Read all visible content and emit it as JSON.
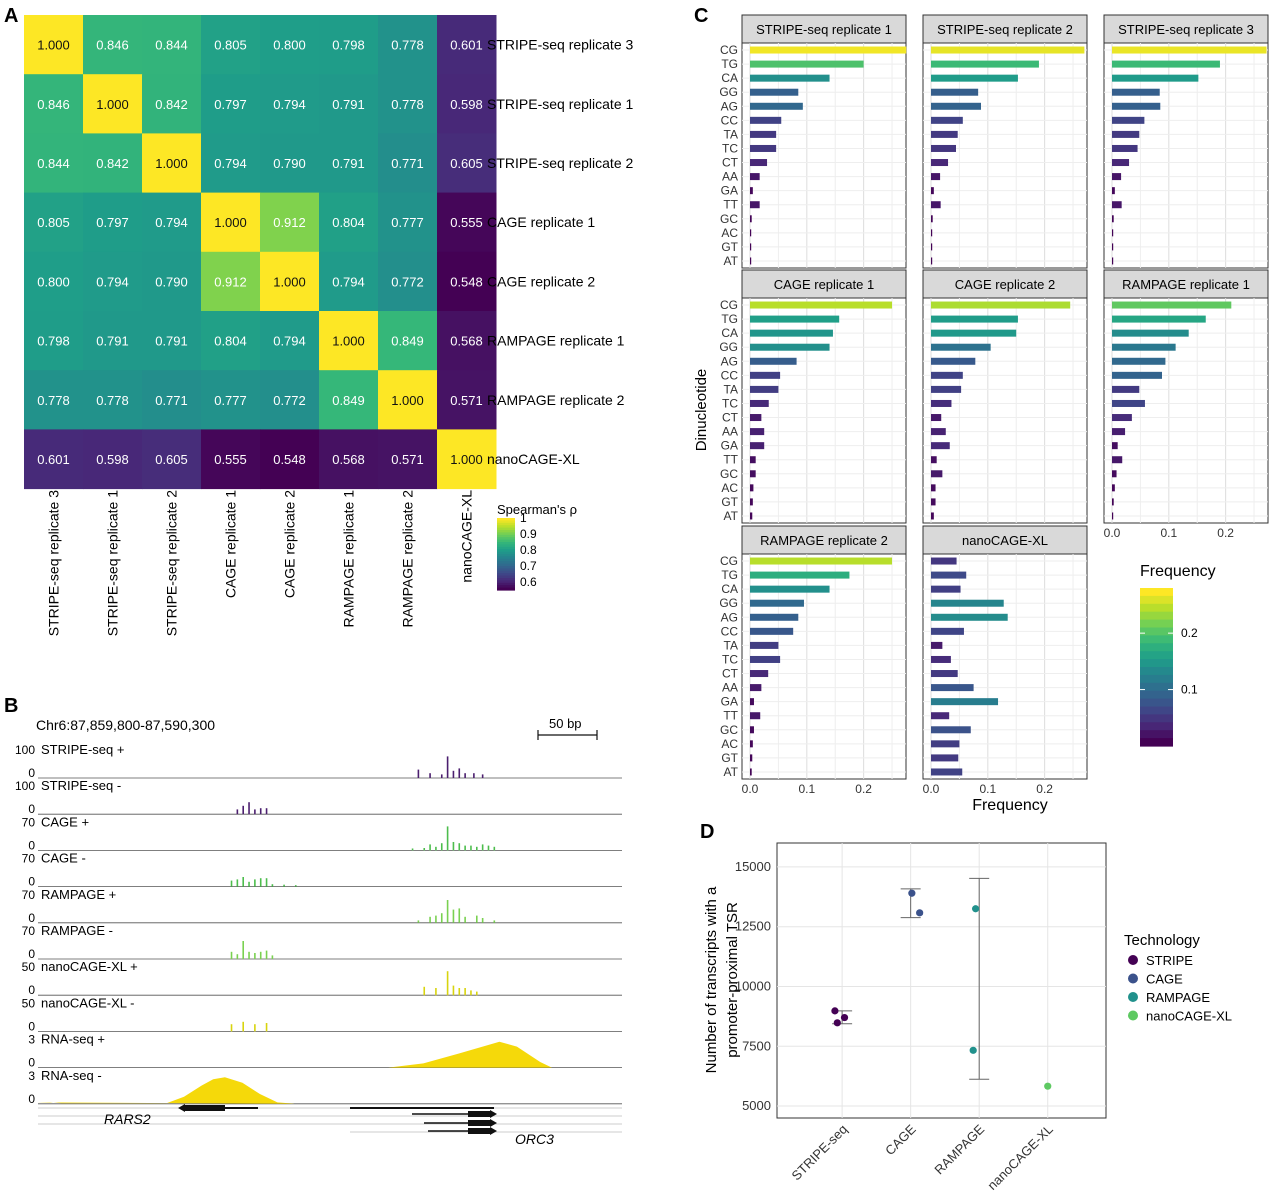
{
  "panel_labels": {
    "a": "A",
    "b": "B",
    "c": "C",
    "d": "D"
  },
  "colors": {
    "viridis": [
      "#440154",
      "#482878",
      "#3e4a89",
      "#31688e",
      "#26828e",
      "#1f9e89",
      "#35b779",
      "#6ece58",
      "#b5de2b",
      "#fde725"
    ],
    "technology": {
      "STRIPE": "#440154",
      "CAGE": "#3b528b",
      "RAMPAGE": "#21918c",
      "nanoCAGE-XL": "#5ec962"
    },
    "tracks": {
      "STRIPE": "#4b1f6f",
      "CAGE": "#4dbd4d",
      "RAMPAGE": "#7ad151",
      "nanoCAGE-XL": "#d8d40e",
      "RNA": "#f5d90a"
    }
  },
  "chart_data": [
    {
      "type": "heatmap",
      "panel": "A",
      "row_labels": [
        "STRIPE-seq replicate 3",
        "STRIPE-seq replicate 1",
        "STRIPE-seq replicate 2",
        "CAGE replicate 1",
        "CAGE replicate 2",
        "RAMPAGE replicate 1",
        "RAMPAGE replicate 2",
        "nanoCAGE-XL"
      ],
      "col_labels": [
        "STRIPE-seq replicate 3",
        "STRIPE-seq replicate 1",
        "STRIPE-seq replicate 2",
        "CAGE replicate 1",
        "CAGE replicate 2",
        "RAMPAGE replicate 1",
        "RAMPAGE replicate 2",
        "nanoCAGE-XL"
      ],
      "values": [
        [
          "1.000",
          "0.846",
          "0.844",
          "0.805",
          "0.800",
          "0.798",
          "0.778",
          "0.601"
        ],
        [
          "0.846",
          "1.000",
          "0.842",
          "0.797",
          "0.794",
          "0.791",
          "0.778",
          "0.598"
        ],
        [
          "0.844",
          "0.842",
          "1.000",
          "0.794",
          "0.790",
          "0.791",
          "0.771",
          "0.605"
        ],
        [
          "0.805",
          "0.797",
          "0.794",
          "1.000",
          "0.912",
          "0.804",
          "0.777",
          "0.555"
        ],
        [
          "0.800",
          "0.794",
          "0.790",
          "0.912",
          "1.000",
          "0.794",
          "0.772",
          "0.548"
        ],
        [
          "0.798",
          "0.791",
          "0.791",
          "0.804",
          "0.794",
          "1.000",
          "0.849",
          "0.568"
        ],
        [
          "0.778",
          "0.778",
          "0.771",
          "0.777",
          "0.772",
          "0.849",
          "1.000",
          "0.571"
        ],
        [
          "0.601",
          "0.598",
          "0.605",
          "0.555",
          "0.548",
          "0.568",
          "0.571",
          "1.000"
        ]
      ],
      "legend_title": "Spearman's ρ",
      "legend_ticks": [
        "1",
        "0.9",
        "0.8",
        "0.7",
        "0.6"
      ],
      "color_range": [
        0.548,
        1.0
      ]
    },
    {
      "type": "bar",
      "panel": "C",
      "orientation": "horizontal",
      "categories": [
        "CG",
        "TG",
        "CA",
        "GG",
        "AG",
        "CC",
        "TA",
        "TC",
        "CT",
        "AA",
        "GA",
        "TT",
        "GC",
        "AC",
        "GT",
        "AT"
      ],
      "xlabel": "Frequency",
      "ylabel": "Dinucleotide",
      "x_ticks": [
        "0.0",
        "0.1",
        "0.2"
      ],
      "xlim": [
        0,
        0.28
      ],
      "legend_title": "Frequency",
      "legend_ticks": [
        "0.2",
        "0.1"
      ],
      "series": [
        {
          "name": "STRIPE-seq replicate 1",
          "values": [
            0.275,
            0.2,
            0.14,
            0.085,
            0.093,
            0.055,
            0.046,
            0.046,
            0.03,
            0.017,
            0.005,
            0.017,
            0.003,
            0.002,
            0.002,
            0.002
          ]
        },
        {
          "name": "STRIPE-seq replicate 2",
          "values": [
            0.27,
            0.19,
            0.153,
            0.083,
            0.088,
            0.056,
            0.047,
            0.044,
            0.03,
            0.016,
            0.005,
            0.017,
            0.003,
            0.002,
            0.002,
            0.002
          ]
        },
        {
          "name": "STRIPE-seq replicate 3",
          "values": [
            0.272,
            0.19,
            0.152,
            0.084,
            0.085,
            0.057,
            0.048,
            0.045,
            0.03,
            0.016,
            0.005,
            0.017,
            0.003,
            0.002,
            0.002,
            0.002
          ]
        },
        {
          "name": "CAGE replicate 1",
          "values": [
            0.25,
            0.157,
            0.146,
            0.14,
            0.082,
            0.053,
            0.05,
            0.033,
            0.02,
            0.025,
            0.025,
            0.01,
            0.01,
            0.006,
            0.005,
            0.004
          ]
        },
        {
          "name": "CAGE replicate 2",
          "values": [
            0.245,
            0.153,
            0.15,
            0.105,
            0.078,
            0.056,
            0.053,
            0.036,
            0.018,
            0.026,
            0.033,
            0.01,
            0.02,
            0.008,
            0.008,
            0.005
          ]
        },
        {
          "name": "RAMPAGE replicate 1",
          "values": [
            0.21,
            0.165,
            0.135,
            0.112,
            0.094,
            0.088,
            0.048,
            0.058,
            0.035,
            0.023,
            0.01,
            0.018,
            0.008,
            0.005,
            0.003,
            0.002
          ]
        },
        {
          "name": "RAMPAGE replicate 2",
          "values": [
            0.25,
            0.175,
            0.14,
            0.095,
            0.085,
            0.076,
            0.05,
            0.053,
            0.032,
            0.02,
            0.007,
            0.018,
            0.007,
            0.005,
            0.004,
            0.003
          ]
        },
        {
          "name": "nanoCAGE-XL",
          "values": [
            0.045,
            0.062,
            0.052,
            0.128,
            0.135,
            0.058,
            0.02,
            0.035,
            0.047,
            0.075,
            0.118,
            0.032,
            0.07,
            0.05,
            0.048,
            0.055
          ]
        }
      ]
    },
    {
      "type": "scatter",
      "panel": "D",
      "categories": [
        "STRIPE-seq",
        "CAGE",
        "RAMPAGE",
        "nanoCAGE-XL"
      ],
      "ylabel": "Number of transcripts with a promoter-proximal TSR",
      "ylabel_lines": [
        "Number of transcripts with a",
        "promoter-proximal TSR"
      ],
      "y_ticks": [
        "15000",
        "12500",
        "10000",
        "7500",
        "5000"
      ],
      "ylim": [
        4500,
        16000
      ],
      "legend_title": "Technology",
      "series": [
        {
          "name": "STRIPE",
          "category": "STRIPE-seq",
          "points": [
            {
              "x_offset": -0.12,
              "y": 8980
            },
            {
              "x_offset": -0.08,
              "y": 8480
            },
            {
              "x_offset": 0.04,
              "y": 8700
            }
          ],
          "error_bar": [
            8440,
            8980
          ]
        },
        {
          "name": "CAGE",
          "category": "CAGE",
          "points": [
            {
              "x_offset": 0.02,
              "y": 13900
            },
            {
              "x_offset": 0.15,
              "y": 13080
            }
          ],
          "error_bar": [
            12880,
            14080
          ]
        },
        {
          "name": "RAMPAGE",
          "category": "RAMPAGE",
          "points": [
            {
              "x_offset": -0.06,
              "y": 13250
            },
            {
              "x_offset": -0.1,
              "y": 7330
            }
          ],
          "error_bar": [
            6120,
            14520
          ]
        },
        {
          "name": "nanoCAGE-XL",
          "category": "nanoCAGE-XL",
          "points": [
            {
              "x_offset": 0.0,
              "y": 5830
            }
          ],
          "error_bar": null
        }
      ]
    },
    {
      "type": "area",
      "panel": "B",
      "title": "Chr6:87,859,800-87,590,300",
      "scale_bar_label": "50 bp",
      "tracks": [
        {
          "label": "STRIPE-seq +",
          "max": "100",
          "min": "0",
          "color_key": "STRIPE",
          "kind": "bars",
          "bars": [
            [
              0.65,
              0.35
            ],
            [
              0.67,
              0.2
            ],
            [
              0.69,
              0.15
            ],
            [
              0.7,
              0.9
            ],
            [
              0.71,
              0.3
            ],
            [
              0.72,
              0.4
            ],
            [
              0.73,
              0.2
            ],
            [
              0.745,
              0.2
            ],
            [
              0.76,
              0.15
            ]
          ]
        },
        {
          "label": "STRIPE-seq -",
          "max": "100",
          "min": "0",
          "color_key": "STRIPE",
          "kind": "bars",
          "bars": [
            [
              0.34,
              0.2
            ],
            [
              0.35,
              0.35
            ],
            [
              0.36,
              0.5
            ],
            [
              0.37,
              0.2
            ],
            [
              0.38,
              0.25
            ],
            [
              0.39,
              0.25
            ]
          ]
        },
        {
          "label": "CAGE +",
          "max": "70",
          "min": "0",
          "color_key": "CAGE",
          "kind": "bars",
          "bars": [
            [
              0.64,
              0.08
            ],
            [
              0.66,
              0.1
            ],
            [
              0.67,
              0.25
            ],
            [
              0.68,
              0.15
            ],
            [
              0.69,
              0.3
            ],
            [
              0.7,
              1.0
            ],
            [
              0.71,
              0.35
            ],
            [
              0.72,
              0.3
            ],
            [
              0.73,
              0.2
            ],
            [
              0.74,
              0.2
            ],
            [
              0.75,
              0.15
            ],
            [
              0.76,
              0.25
            ],
            [
              0.77,
              0.2
            ],
            [
              0.78,
              0.15
            ]
          ]
        },
        {
          "label": "CAGE -",
          "max": "70",
          "min": "0",
          "color_key": "CAGE",
          "kind": "bars",
          "bars": [
            [
              0.33,
              0.25
            ],
            [
              0.34,
              0.3
            ],
            [
              0.35,
              0.4
            ],
            [
              0.36,
              0.2
            ],
            [
              0.37,
              0.3
            ],
            [
              0.38,
              0.35
            ],
            [
              0.39,
              0.35
            ],
            [
              0.4,
              0.1
            ],
            [
              0.42,
              0.08
            ],
            [
              0.44,
              0.06
            ]
          ]
        },
        {
          "label": "RAMPAGE +",
          "max": "70",
          "min": "0",
          "color_key": "RAMPAGE",
          "kind": "bars",
          "bars": [
            [
              0.65,
              0.1
            ],
            [
              0.67,
              0.25
            ],
            [
              0.68,
              0.3
            ],
            [
              0.69,
              0.4
            ],
            [
              0.7,
              0.95
            ],
            [
              0.71,
              0.55
            ],
            [
              0.72,
              0.6
            ],
            [
              0.73,
              0.25
            ],
            [
              0.75,
              0.3
            ],
            [
              0.76,
              0.2
            ],
            [
              0.78,
              0.1
            ]
          ]
        },
        {
          "label": "RAMPAGE -",
          "max": "70",
          "min": "0",
          "color_key": "RAMPAGE",
          "kind": "bars",
          "bars": [
            [
              0.33,
              0.3
            ],
            [
              0.34,
              0.2
            ],
            [
              0.35,
              0.75
            ],
            [
              0.36,
              0.3
            ],
            [
              0.37,
              0.25
            ],
            [
              0.38,
              0.3
            ],
            [
              0.39,
              0.35
            ],
            [
              0.4,
              0.15
            ]
          ]
        },
        {
          "label": "nanoCAGE-XL +",
          "max": "50",
          "min": "0",
          "color_key": "nanoCAGE-XL",
          "kind": "bars",
          "bars": [
            [
              0.66,
              0.35
            ],
            [
              0.68,
              0.3
            ],
            [
              0.7,
              1.0
            ],
            [
              0.71,
              0.4
            ],
            [
              0.72,
              0.3
            ],
            [
              0.73,
              0.3
            ],
            [
              0.74,
              0.2
            ],
            [
              0.75,
              0.15
            ]
          ]
        },
        {
          "label": "nanoCAGE-XL -",
          "max": "50",
          "min": "0",
          "color_key": "nanoCAGE-XL",
          "kind": "bars",
          "bars": [
            [
              0.33,
              0.3
            ],
            [
              0.35,
              0.4
            ],
            [
              0.37,
              0.3
            ],
            [
              0.39,
              0.35
            ]
          ]
        },
        {
          "label": "RNA-seq +",
          "max": "3",
          "min": "0",
          "color_key": "RNA",
          "kind": "area",
          "points": [
            [
              0.6,
              0
            ],
            [
              0.66,
              0.15
            ],
            [
              0.72,
              0.5
            ],
            [
              0.79,
              0.92
            ],
            [
              0.82,
              0.75
            ],
            [
              0.86,
              0.2
            ],
            [
              0.88,
              0
            ]
          ]
        },
        {
          "label": "RNA-seq -",
          "max": "3",
          "min": "0",
          "color_key": "RNA",
          "kind": "area",
          "points": [
            [
              0.0,
              0.05
            ],
            [
              0.02,
              0.06
            ],
            [
              0.04,
              0.02
            ],
            [
              0.22,
              0.02
            ],
            [
              0.25,
              0.25
            ],
            [
              0.28,
              0.65
            ],
            [
              0.3,
              0.88
            ],
            [
              0.32,
              0.95
            ],
            [
              0.35,
              0.75
            ],
            [
              0.38,
              0.35
            ],
            [
              0.41,
              0.05
            ],
            [
              0.44,
              0
            ]
          ]
        }
      ],
      "genes": [
        "RARS2",
        "ORC3"
      ]
    }
  ]
}
